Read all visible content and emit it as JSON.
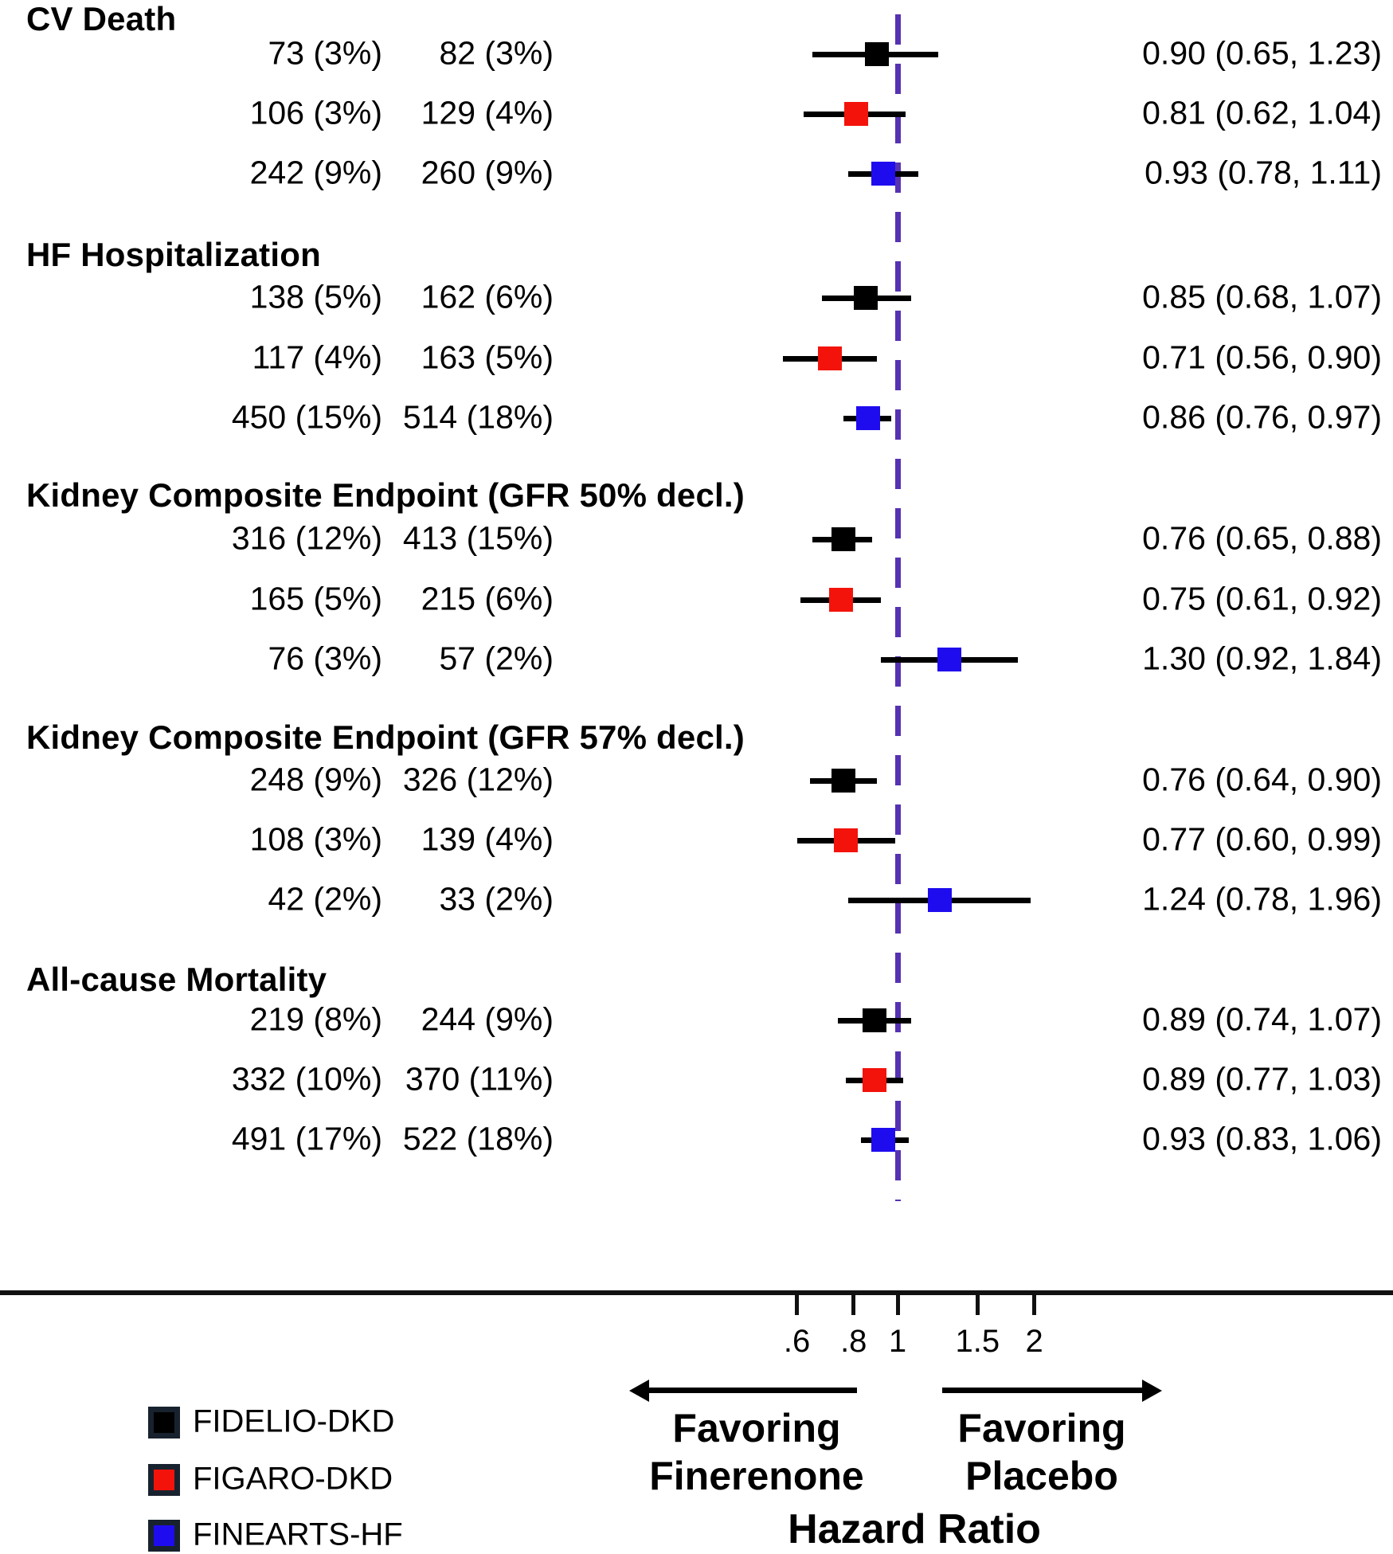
{
  "chart_data": {
    "type": "forest",
    "x_scale": "log",
    "reference_line": 1.0,
    "x_ticks": [
      {
        "value": 0.6,
        "label": ".6"
      },
      {
        "value": 0.8,
        "label": ".8"
      },
      {
        "value": 1.0,
        "label": "1"
      },
      {
        "value": 1.5,
        "label": "1.5"
      },
      {
        "value": 2.0,
        "label": "2"
      }
    ],
    "legend": [
      {
        "label": "FIDELIO-DKD",
        "color": "#000000"
      },
      {
        "label": "FIGARO-DKD",
        "color": "#f3130b"
      },
      {
        "label": "FINEARTS-HF",
        "color": "#1f0cee"
      }
    ],
    "colors": {
      "reference_line": "#5632b2",
      "ci_line": "#000000",
      "axis": "#111111",
      "legend_swatch_border": "#18222e"
    },
    "groups": [
      {
        "label": "CV Death",
        "rows": [
          {
            "trial": "FIDELIO-DKD",
            "finerenone_n": "73 (3%)",
            "placebo_n": "82 (3%)",
            "hr": 0.9,
            "ci_low": 0.65,
            "ci_high": 1.23,
            "hr_text": "0.90 (0.65, 1.23)"
          },
          {
            "trial": "FIGARO-DKD",
            "finerenone_n": "106 (3%)",
            "placebo_n": "129 (4%)",
            "hr": 0.81,
            "ci_low": 0.62,
            "ci_high": 1.04,
            "hr_text": "0.81 (0.62, 1.04)"
          },
          {
            "trial": "FINEARTS-HF",
            "finerenone_n": "242 (9%)",
            "placebo_n": "260 (9%)",
            "hr": 0.93,
            "ci_low": 0.78,
            "ci_high": 1.11,
            "hr_text": "0.93 (0.78, 1.11)"
          }
        ]
      },
      {
        "label": "HF Hospitalization",
        "rows": [
          {
            "trial": "FIDELIO-DKD",
            "finerenone_n": "138 (5%)",
            "placebo_n": "162 (6%)",
            "hr": 0.85,
            "ci_low": 0.68,
            "ci_high": 1.07,
            "hr_text": "0.85 (0.68, 1.07)"
          },
          {
            "trial": "FIGARO-DKD",
            "finerenone_n": "117 (4%)",
            "placebo_n": "163 (5%)",
            "hr": 0.71,
            "ci_low": 0.56,
            "ci_high": 0.9,
            "hr_text": "0.71 (0.56, 0.90)"
          },
          {
            "trial": "FINEARTS-HF",
            "finerenone_n": "450 (15%)",
            "placebo_n": "514 (18%)",
            "hr": 0.86,
            "ci_low": 0.76,
            "ci_high": 0.97,
            "hr_text": "0.86 (0.76, 0.97)"
          }
        ]
      },
      {
        "label": "Kidney Composite Endpoint (GFR 50% decl.)",
        "rows": [
          {
            "trial": "FIDELIO-DKD",
            "finerenone_n": "316 (12%)",
            "placebo_n": "413 (15%)",
            "hr": 0.76,
            "ci_low": 0.65,
            "ci_high": 0.88,
            "hr_text": "0.76 (0.65, 0.88)"
          },
          {
            "trial": "FIGARO-DKD",
            "finerenone_n": "165 (5%)",
            "placebo_n": "215 (6%)",
            "hr": 0.75,
            "ci_low": 0.61,
            "ci_high": 0.92,
            "hr_text": "0.75 (0.61, 0.92)"
          },
          {
            "trial": "FINEARTS-HF",
            "finerenone_n": "76 (3%)",
            "placebo_n": "57 (2%)",
            "hr": 1.3,
            "ci_low": 0.92,
            "ci_high": 1.84,
            "hr_text": "1.30 (0.92, 1.84)"
          }
        ]
      },
      {
        "label": "Kidney Composite Endpoint (GFR 57% decl.)",
        "rows": [
          {
            "trial": "FIDELIO-DKD",
            "finerenone_n": "248 (9%)",
            "placebo_n": "326 (12%)",
            "hr": 0.76,
            "ci_low": 0.64,
            "ci_high": 0.9,
            "hr_text": "0.76 (0.64, 0.90)"
          },
          {
            "trial": "FIGARO-DKD",
            "finerenone_n": "108 (3%)",
            "placebo_n": "139 (4%)",
            "hr": 0.77,
            "ci_low": 0.6,
            "ci_high": 0.99,
            "hr_text": "0.77 (0.60, 0.99)"
          },
          {
            "trial": "FINEARTS-HF",
            "finerenone_n": "42 (2%)",
            "placebo_n": "33 (2%)",
            "hr": 1.24,
            "ci_low": 0.78,
            "ci_high": 1.96,
            "hr_text": "1.24 (0.78, 1.96)"
          }
        ]
      },
      {
        "label": "All-cause Mortality",
        "rows": [
          {
            "trial": "FIDELIO-DKD",
            "finerenone_n": "219 (8%)",
            "placebo_n": "244 (9%)",
            "hr": 0.89,
            "ci_low": 0.74,
            "ci_high": 1.07,
            "hr_text": "0.89 (0.74, 1.07)"
          },
          {
            "trial": "FIGARO-DKD",
            "finerenone_n": "332 (10%)",
            "placebo_n": "370 (11%)",
            "hr": 0.89,
            "ci_low": 0.77,
            "ci_high": 1.03,
            "hr_text": "0.89 (0.77, 1.03)"
          },
          {
            "trial": "FINEARTS-HF",
            "finerenone_n": "491 (17%)",
            "placebo_n": "522 (18%)",
            "hr": 0.93,
            "ci_low": 0.83,
            "ci_high": 1.06,
            "hr_text": "0.93 (0.83, 1.06)"
          }
        ]
      }
    ],
    "footer": {
      "left_label_line1": "Favoring",
      "left_label_line2": "Finerenone",
      "right_label_line1": "Favoring",
      "right_label_line2": "Placebo",
      "axis_title": "Hazard Ratio"
    }
  }
}
